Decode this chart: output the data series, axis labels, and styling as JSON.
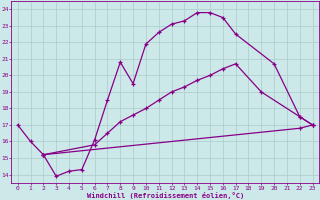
{
  "bg_color": "#cce8e8",
  "grid_color": "#aacccc",
  "line_color": "#880088",
  "xlim": [
    -0.5,
    23.5
  ],
  "ylim": [
    13.5,
    24.5
  ],
  "yticks": [
    14,
    15,
    16,
    17,
    18,
    19,
    20,
    21,
    22,
    23,
    24
  ],
  "xticks": [
    0,
    1,
    2,
    3,
    4,
    5,
    6,
    7,
    8,
    9,
    10,
    11,
    12,
    13,
    14,
    15,
    16,
    17,
    18,
    19,
    20,
    21,
    22,
    23
  ],
  "xlabel": "Windchill (Refroidissement éolien,°C)",
  "line1_x": [
    0,
    1,
    2,
    3,
    4,
    5,
    6,
    7,
    8,
    9,
    10,
    11,
    12,
    13,
    14,
    15,
    16,
    17,
    20,
    22,
    23
  ],
  "line1_y": [
    17.0,
    16.0,
    15.2,
    13.9,
    14.2,
    14.3,
    16.1,
    18.5,
    20.8,
    19.5,
    21.9,
    22.6,
    23.1,
    23.3,
    23.8,
    23.8,
    23.5,
    22.5,
    20.7,
    17.5,
    17.0
  ],
  "line2_x": [
    2,
    6,
    7,
    8,
    9,
    10,
    11,
    12,
    13,
    14,
    15,
    16,
    17,
    19,
    22,
    23
  ],
  "line2_y": [
    15.2,
    15.8,
    16.5,
    17.2,
    17.6,
    18.0,
    18.5,
    19.0,
    19.3,
    19.7,
    20.0,
    20.4,
    20.7,
    19.0,
    17.5,
    17.0
  ],
  "line3_x": [
    2,
    22,
    23
  ],
  "line3_y": [
    15.2,
    16.8,
    17.0
  ]
}
